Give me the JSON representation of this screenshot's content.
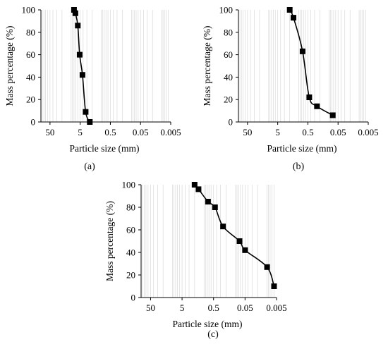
{
  "chart_data": [
    {
      "type": "line",
      "panel_label": "(a)",
      "xlabel": "Particle size (mm)",
      "ylabel": "Mass percentage (%)",
      "xscale": "log",
      "x_reversed": true,
      "xlim": [
        100,
        0.005
      ],
      "ylim": [
        0,
        100
      ],
      "x_ticks": [
        "50",
        "5",
        "0.5",
        "0.05",
        "0.005"
      ],
      "y_ticks": [
        "0",
        "20",
        "40",
        "60",
        "80",
        "100"
      ],
      "grid": true,
      "series": [
        {
          "x": [
            8.0,
            7.2,
            6.0,
            5.2,
            4.2,
            3.3,
            2.4
          ],
          "y": [
            100,
            97,
            86,
            60,
            42,
            9,
            0
          ]
        }
      ]
    },
    {
      "type": "line",
      "panel_label": "(b)",
      "xlabel": "Particle size (mm)",
      "ylabel": "Mass percentage (%)",
      "xscale": "log",
      "x_reversed": true,
      "xlim": [
        100,
        0.005
      ],
      "ylim": [
        0,
        100
      ],
      "x_ticks": [
        "50",
        "5",
        "0.5",
        "0.05",
        "0.005"
      ],
      "y_ticks": [
        "0",
        "20",
        "40",
        "60",
        "80",
        "100"
      ],
      "grid": true,
      "series": [
        {
          "x": [
            2.0,
            1.5,
            0.75,
            0.45,
            0.25,
            0.075
          ],
          "y": [
            100,
            93,
            63,
            22,
            14,
            6
          ]
        }
      ]
    },
    {
      "type": "line",
      "panel_label": "(c)",
      "xlabel": "Particle size (mm)",
      "ylabel": "Mass percentage (%)",
      "xscale": "log",
      "x_reversed": true,
      "xlim": [
        100,
        0.005
      ],
      "ylim": [
        0,
        100
      ],
      "x_ticks": [
        "50",
        "5",
        "0.5",
        "0.05",
        "0.005"
      ],
      "y_ticks": [
        "0",
        "20",
        "40",
        "60",
        "80",
        "100"
      ],
      "grid": true,
      "series": [
        {
          "x": [
            2.0,
            1.5,
            0.75,
            0.45,
            0.25,
            0.075,
            0.05,
            0.01,
            0.006
          ],
          "y": [
            100,
            96,
            85,
            80,
            63,
            50,
            42,
            27,
            10
          ]
        }
      ]
    }
  ]
}
